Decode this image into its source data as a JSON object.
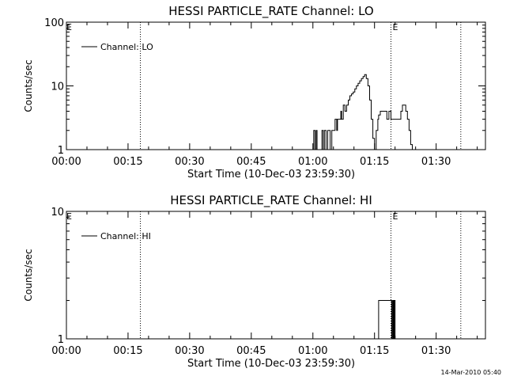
{
  "footer": {
    "timestamp": "14-Mar-2010 05:40"
  },
  "chart_data": [
    {
      "type": "line",
      "title": "HESSI PARTICLE_RATE Channel: LO",
      "xlabel": "Start Time (10-Dec-03 23:59:30)",
      "ylabel": "Counts/sec",
      "yscale": "log",
      "xlim": [
        0,
        102
      ],
      "ylim": [
        1,
        100
      ],
      "xticks": [
        0,
        15,
        30,
        45,
        60,
        75,
        90
      ],
      "xtick_labels": [
        "00:00",
        "00:15",
        "00:30",
        "00:45",
        "01:00",
        "01:15",
        "01:30"
      ],
      "yticks": [
        1,
        10,
        100
      ],
      "ytick_labels": [
        "1",
        "10",
        "100"
      ],
      "legend": {
        "position": "top-left",
        "entries": [
          "Channel: LO"
        ]
      },
      "event_lines": [
        {
          "x": 18,
          "label": ""
        },
        {
          "x": 79,
          "label": "E"
        },
        {
          "x": 96,
          "label": ""
        }
      ],
      "left_marker": "E",
      "series": [
        {
          "name": "Channel: LO",
          "x": [
            60.0,
            60.2,
            60.5,
            60.8,
            61.0,
            61.2,
            61.6,
            62.0,
            62.2,
            62.5,
            62.8,
            63.0,
            63.2,
            63.6,
            64.0,
            64.2,
            64.6,
            65.0,
            65.4,
            65.8,
            66.0,
            66.4,
            66.8,
            67.0,
            67.4,
            67.8,
            68.2,
            68.6,
            69.0,
            69.4,
            69.8,
            70.2,
            70.6,
            71.0,
            71.4,
            71.8,
            72.2,
            72.6,
            73.0,
            73.4,
            73.8,
            74.2,
            74.6,
            75.0,
            75.4,
            75.8,
            76.0,
            76.4,
            76.8,
            77.2,
            77.6,
            78.0,
            78.5,
            79.0,
            79.5,
            80.0,
            80.5,
            81.0,
            81.4,
            81.8,
            82.2,
            82.6,
            83.0,
            83.4,
            83.8,
            84.2
          ],
          "values": [
            1.0,
            2.0,
            1.0,
            2.0,
            1.0,
            1.0,
            1.0,
            1.0,
            2.0,
            1.0,
            2.0,
            2.0,
            1.0,
            2.0,
            2.0,
            1.0,
            2.0,
            2.0,
            3.0,
            2.0,
            3.0,
            3.0,
            4.0,
            3.0,
            5.0,
            4.0,
            5.0,
            6.0,
            7.0,
            7.5,
            8.0,
            9.0,
            10.0,
            11.0,
            12.0,
            13.0,
            14.0,
            15.0,
            13.0,
            10.0,
            6.0,
            3.0,
            1.5,
            1.0,
            2.0,
            3.0,
            3.5,
            4.0,
            4.0,
            4.0,
            4.0,
            3.0,
            4.0,
            3.0,
            3.0,
            3.0,
            3.0,
            3.0,
            4.0,
            5.0,
            5.0,
            4.0,
            3.0,
            2.0,
            1.2,
            1.0
          ]
        }
      ]
    },
    {
      "type": "line",
      "title": "HESSI PARTICLE_RATE Channel: HI",
      "xlabel": "Start Time (10-Dec-03 23:59:30)",
      "ylabel": "Counts/sec",
      "yscale": "log",
      "xlim": [
        0,
        102
      ],
      "ylim": [
        1,
        10
      ],
      "xticks": [
        0,
        15,
        30,
        45,
        60,
        75,
        90
      ],
      "xtick_labels": [
        "00:00",
        "00:15",
        "00:30",
        "00:45",
        "01:00",
        "01:15",
        "01:30"
      ],
      "yticks": [
        1,
        10
      ],
      "ytick_labels": [
        "1",
        "10"
      ],
      "legend": {
        "position": "top-left",
        "entries": [
          "Channel: HI"
        ]
      },
      "event_lines": [
        {
          "x": 18,
          "label": ""
        },
        {
          "x": 79,
          "label": "E"
        },
        {
          "x": 96,
          "label": ""
        }
      ],
      "left_marker": "E",
      "series": [
        {
          "name": "Channel: HI",
          "x": [
            75.5,
            76.0,
            76.6,
            77.2,
            77.8,
            78.4,
            79.0,
            79.2,
            79.4,
            79.6,
            79.8,
            80.0,
            80.3
          ],
          "values": [
            1.0,
            2.0,
            2.0,
            2.0,
            2.0,
            2.0,
            2.0,
            1.0,
            2.0,
            1.0,
            2.0,
            1.0,
            1.0
          ]
        }
      ]
    }
  ]
}
